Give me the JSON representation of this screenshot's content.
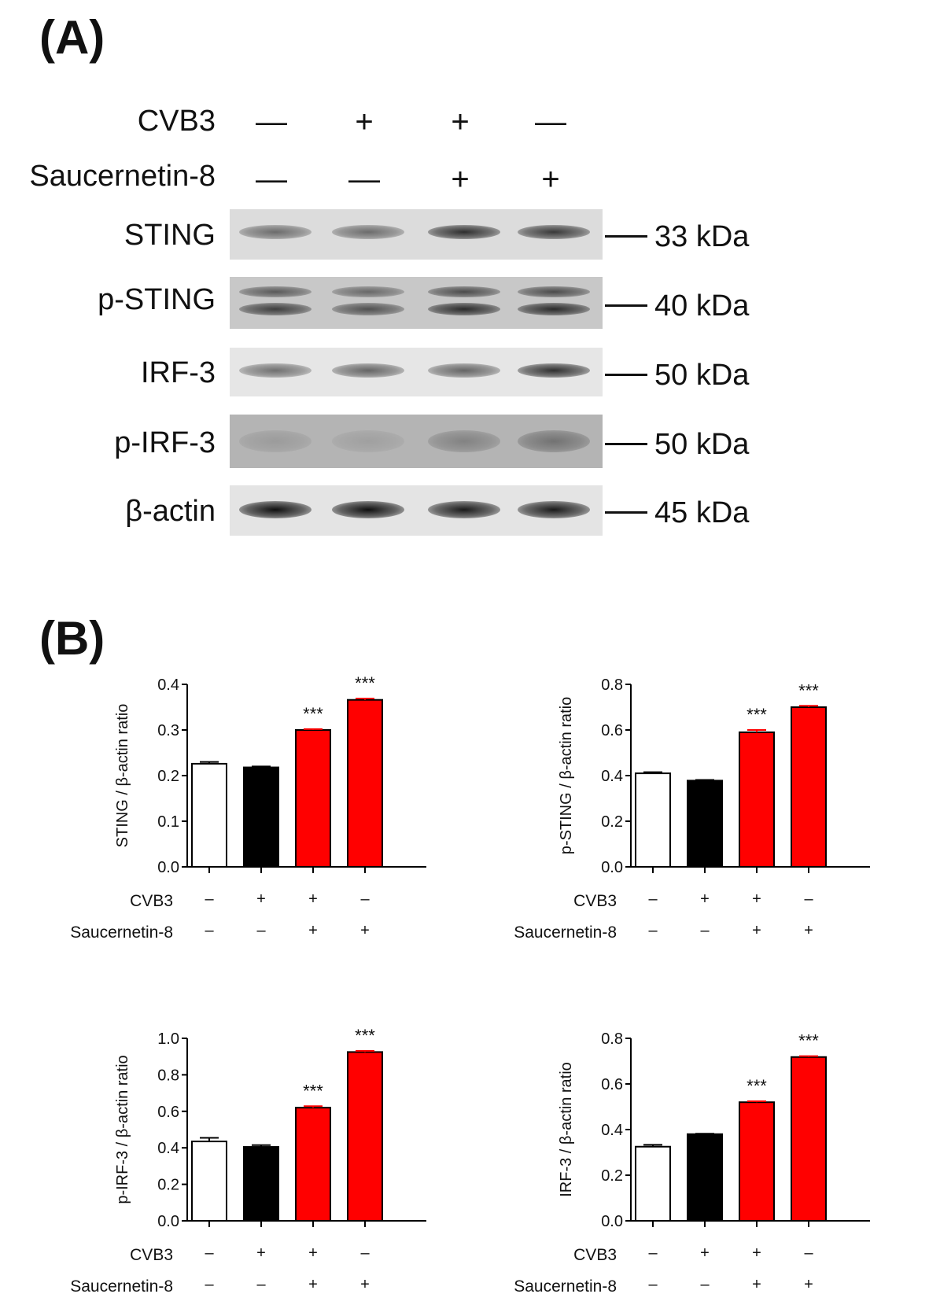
{
  "panel_a": {
    "letter": "(A)",
    "treatments": [
      {
        "name": "CVB3",
        "signs": [
          "—",
          "+",
          "+",
          "—"
        ]
      },
      {
        "name": "Saucernetin-8",
        "signs": [
          "—",
          "—",
          "+",
          "+"
        ]
      }
    ],
    "blots": [
      {
        "label": "STING",
        "marker": "33 kDa",
        "bg": "#dcdcdc",
        "intensity": [
          0.55,
          0.55,
          0.85,
          0.8
        ]
      },
      {
        "label": "p-STING",
        "marker": "40 kDa",
        "bg": "#c8c8c8",
        "intensity": [
          0.75,
          0.65,
          0.85,
          0.85
        ]
      },
      {
        "label": "IRF-3",
        "marker": "50 kDa",
        "bg": "#e6e6e6",
        "intensity": [
          0.55,
          0.6,
          0.6,
          0.85
        ]
      },
      {
        "label": "p-IRF-3",
        "marker": "50 kDa",
        "bg": "#b4b4b4",
        "intensity": [
          0.15,
          0.12,
          0.3,
          0.4
        ]
      },
      {
        "label": "β-actin",
        "marker": "45 kDa",
        "bg": "#e4e4e4",
        "intensity": [
          1.0,
          1.0,
          0.95,
          0.95
        ]
      }
    ]
  },
  "panel_b": {
    "letter": "(B)",
    "row_labels": [
      "CVB3",
      "Saucernetin-8"
    ],
    "cvb3_signs": [
      "–",
      "+",
      "+",
      "–"
    ],
    "sauc_signs": [
      "–",
      "–",
      "+",
      "+"
    ]
  },
  "colors": {
    "control": "#ffffff",
    "cvb3": "#000000",
    "treated": "#ff0000"
  },
  "chart_data": [
    {
      "type": "bar",
      "ylabel": "STING / β-actin ratio",
      "ylim": [
        0,
        0.4
      ],
      "yticks": [
        "0.0",
        "0.1",
        "0.2",
        "0.3",
        "0.4"
      ],
      "values": [
        0.226,
        0.218,
        0.3,
        0.366
      ],
      "errors": [
        0.004,
        0.002,
        0.002,
        0.003
      ],
      "annotations": [
        "",
        "",
        "***",
        "***"
      ]
    },
    {
      "type": "bar",
      "ylabel": "p-STING / β-actin ratio",
      "ylim": [
        0,
        0.8
      ],
      "yticks": [
        "0.0",
        "0.2",
        "0.4",
        "0.6",
        "0.8"
      ],
      "values": [
        0.41,
        0.378,
        0.59,
        0.7
      ],
      "errors": [
        0.005,
        0.003,
        0.01,
        0.006
      ],
      "annotations": [
        "",
        "",
        "***",
        "***"
      ]
    },
    {
      "type": "bar",
      "ylabel": "p-IRF-3 / β-actin ratio",
      "ylim": [
        0,
        1.0
      ],
      "yticks": [
        "0.0",
        "0.2",
        "0.4",
        "0.6",
        "0.8",
        "1.0"
      ],
      "values": [
        0.435,
        0.405,
        0.62,
        0.925
      ],
      "errors": [
        0.02,
        0.01,
        0.008,
        0.006
      ],
      "annotations": [
        "",
        "",
        "***",
        "***"
      ]
    },
    {
      "type": "bar",
      "ylabel": "IRF-3 / β-actin ratio",
      "ylim": [
        0,
        0.8
      ],
      "yticks": [
        "0.0",
        "0.2",
        "0.4",
        "0.6",
        "0.8"
      ],
      "values": [
        0.325,
        0.38,
        0.52,
        0.718
      ],
      "errors": [
        0.008,
        0.002,
        0.004,
        0.004
      ],
      "annotations": [
        "",
        "",
        "***",
        "***"
      ]
    }
  ]
}
